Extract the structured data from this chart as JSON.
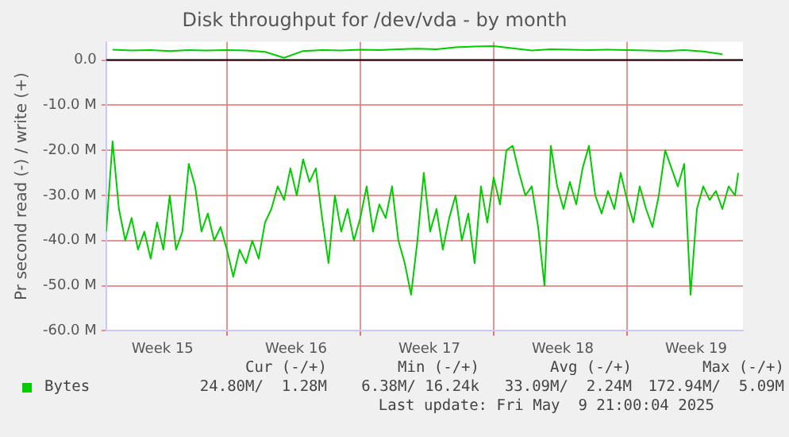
{
  "chart_data": {
    "type": "line",
    "title": "Disk throughput for /dev/vda - by month",
    "ylabel": "Pr second read (-) / write (+)",
    "x": [
      "2025-04-06T16:00",
      "2025-04-07T00:00",
      "2025-04-07T08:00",
      "2025-04-07T16:00",
      "2025-04-08T00:00",
      "2025-04-08T08:00",
      "2025-04-08T16:00",
      "2025-04-09T00:00",
      "2025-04-09T08:00",
      "2025-04-09T16:00",
      "2025-04-10T00:00",
      "2025-04-10T08:00",
      "2025-04-10T16:00",
      "2025-04-11T00:00",
      "2025-04-11T08:00",
      "2025-04-11T16:00",
      "2025-04-12T00:00",
      "2025-04-12T08:00",
      "2025-04-12T16:00",
      "2025-04-13T00:00",
      "2025-04-13T08:00",
      "2025-04-13T16:00",
      "2025-04-14T00:00",
      "2025-04-14T08:00",
      "2025-04-14T16:00",
      "2025-04-15T00:00",
      "2025-04-15T08:00",
      "2025-04-15T16:00",
      "2025-04-16T00:00",
      "2025-04-16T08:00",
      "2025-04-16T16:00",
      "2025-04-17T00:00",
      "2025-04-17T08:00",
      "2025-04-17T16:00",
      "2025-04-18T00:00",
      "2025-04-18T08:00",
      "2025-04-18T16:00",
      "2025-04-19T00:00",
      "2025-04-19T08:00",
      "2025-04-19T16:00",
      "2025-04-20T00:00",
      "2025-04-20T08:00",
      "2025-04-20T16:00",
      "2025-04-21T00:00",
      "2025-04-21T08:00",
      "2025-04-21T16:00",
      "2025-04-22T00:00",
      "2025-04-22T08:00",
      "2025-04-22T16:00",
      "2025-04-23T00:00",
      "2025-04-23T08:00",
      "2025-04-23T16:00",
      "2025-04-24T00:00",
      "2025-04-24T08:00",
      "2025-04-24T16:00",
      "2025-04-25T00:00",
      "2025-04-25T08:00",
      "2025-04-25T16:00",
      "2025-04-26T00:00",
      "2025-04-26T08:00",
      "2025-04-26T16:00",
      "2025-04-27T00:00",
      "2025-04-27T08:00",
      "2025-04-27T16:00",
      "2025-04-28T00:00",
      "2025-04-28T08:00",
      "2025-04-28T16:00",
      "2025-04-29T00:00",
      "2025-04-29T08:00",
      "2025-04-29T16:00",
      "2025-04-30T00:00",
      "2025-04-30T08:00",
      "2025-04-30T16:00",
      "2025-05-01T00:00",
      "2025-05-01T08:00",
      "2025-05-01T16:00",
      "2025-05-02T00:00",
      "2025-05-02T08:00",
      "2025-05-02T16:00",
      "2025-05-03T00:00",
      "2025-05-03T08:00",
      "2025-05-03T16:00",
      "2025-05-04T00:00",
      "2025-05-04T08:00",
      "2025-05-04T16:00",
      "2025-05-05T00:00",
      "2025-05-05T08:00",
      "2025-05-05T16:00",
      "2025-05-06T00:00",
      "2025-05-06T08:00",
      "2025-05-06T16:00",
      "2025-05-07T00:00",
      "2025-05-07T08:00",
      "2025-05-07T16:00",
      "2025-05-08T00:00",
      "2025-05-08T08:00",
      "2025-05-08T16:00",
      "2025-05-09T00:00",
      "2025-05-09T08:00",
      "2025-05-09T16:00",
      "2025-05-09T20:00"
    ],
    "series": [
      {
        "name": "Bytes",
        "color": "#00cc00",
        "values": [
          -38,
          -18,
          -33,
          -40,
          -35,
          -42,
          -38,
          -44,
          -36,
          -42,
          -30,
          -42,
          -38,
          -23,
          -28,
          -38,
          -34,
          -40,
          -37,
          -42,
          -48,
          -42,
          -45,
          -40,
          -44,
          -36,
          -33,
          -28,
          -31,
          -24,
          -30,
          -22,
          -27,
          -24,
          -35,
          -45,
          -30,
          -38,
          -33,
          -40,
          -35,
          -28,
          -38,
          -32,
          -35,
          -28,
          -40,
          -45,
          -52,
          -40,
          -25,
          -38,
          -33,
          -42,
          -35,
          -30,
          -40,
          -34,
          -45,
          -28,
          -36,
          -26,
          -32,
          -20,
          -19,
          -25,
          -30,
          -28,
          -37,
          -50,
          -19,
          -28,
          -33,
          -27,
          -32,
          -24,
          -19,
          -30,
          -34,
          -29,
          -33,
          -25,
          -31,
          -36,
          -28,
          -33,
          -37,
          -30,
          -20,
          -24,
          -28,
          -23,
          -52,
          -33,
          -28,
          -31,
          -29,
          -33,
          -28,
          -30,
          -25
        ]
      },
      {
        "color": "#00cc00",
        "x": [
          "2025-04-07",
          "2025-04-08",
          "2025-04-09",
          "2025-04-10",
          "2025-04-11",
          "2025-04-12",
          "2025-04-13",
          "2025-04-14",
          "2025-04-15",
          "2025-04-16",
          "2025-04-17",
          "2025-04-18",
          "2025-04-19",
          "2025-04-20",
          "2025-04-21",
          "2025-04-22",
          "2025-04-23",
          "2025-04-24",
          "2025-04-25",
          "2025-04-26",
          "2025-04-27",
          "2025-04-28",
          "2025-04-29",
          "2025-04-30",
          "2025-05-01",
          "2025-05-02",
          "2025-05-03",
          "2025-05-04",
          "2025-05-05",
          "2025-05-06",
          "2025-05-07",
          "2025-05-08",
          "2025-05-09"
        ],
        "values": [
          2.3,
          2.1,
          2.2,
          2.0,
          2.2,
          2.1,
          2.2,
          2.1,
          1.8,
          0.5,
          2.0,
          2.2,
          2.1,
          2.3,
          2.2,
          2.4,
          2.5,
          2.4,
          2.8,
          3.0,
          3.1,
          2.6,
          2.1,
          2.4,
          2.3,
          2.2,
          2.3,
          2.2,
          2.1,
          2.0,
          2.2,
          1.9,
          1.3
        ]
      }
    ],
    "xlim": [
      "2025-04-06T16:00",
      "2025-05-10T02:00"
    ],
    "xticks": [
      {
        "value": "2025-04-09T15:00",
        "label": "Week 15"
      },
      {
        "value": "2025-04-13",
        "label": null
      },
      {
        "value": "2025-04-16T15:00",
        "label": "Week 16"
      },
      {
        "value": "2025-04-20",
        "label": null
      },
      {
        "value": "2025-04-23T15:00",
        "label": "Week 17"
      },
      {
        "value": "2025-04-27",
        "label": null
      },
      {
        "value": "2025-04-30T15:00",
        "label": "Week 18"
      },
      {
        "value": "2025-05-04",
        "label": null
      },
      {
        "value": "2025-05-07T15:00",
        "label": "Week 19"
      }
    ],
    "ylim": [
      -60,
      4
    ],
    "yticks": [
      {
        "value": -60,
        "label": "-60.0 M"
      },
      {
        "value": -50,
        "label": "-50.0 M"
      },
      {
        "value": -40,
        "label": "-40.0 M"
      },
      {
        "value": -30,
        "label": "-30.0 M"
      },
      {
        "value": -20,
        "label": "-20.0 M"
      },
      {
        "value": -10,
        "label": "-10.0 M"
      },
      {
        "value": 0,
        "label": "0.0"
      }
    ],
    "ref_lines": [
      {
        "axis": "y",
        "value": 0,
        "color": "#000000"
      }
    ],
    "grid": true,
    "legend": "bottom left",
    "marker": "none",
    "line_style": "solid",
    "annotations": [
      "Cur (-/+)",
      "Min (-/+)",
      "Avg (-/+)",
      "Max (-/+)",
      "24.80M/  1.28M",
      "6.38M/ 16.24k",
      "33.09M/  2.24M",
      "172.94M/  5.09M",
      "Last update: Fri May  9 21:00:04 2025"
    ]
  }
}
